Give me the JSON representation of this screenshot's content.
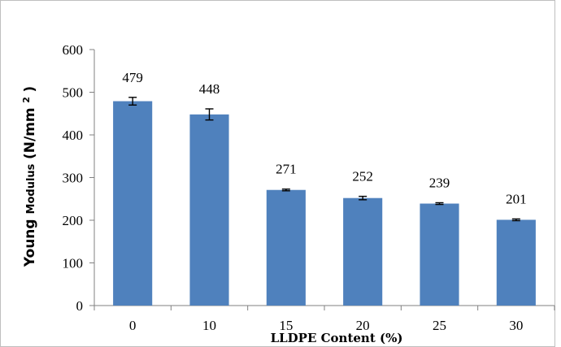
{
  "chart_data": {
    "type": "bar",
    "categories": [
      "0",
      "10",
      "15",
      "20",
      "25",
      "30"
    ],
    "values": [
      479,
      448,
      271,
      252,
      239,
      201
    ],
    "errors": [
      9,
      13,
      2,
      4,
      2,
      2
    ],
    "data_labels": [
      "479",
      "448",
      "271",
      "252",
      "239",
      "201"
    ],
    "title": "",
    "xlabel": "LLDPE Content (%)",
    "ylabel_parts": [
      "Young ",
      "Modulus",
      " (N/mm",
      "2",
      ")"
    ],
    "ylim": [
      0,
      600
    ],
    "yticks": [
      0,
      100,
      200,
      300,
      400,
      500,
      600
    ],
    "ytick_labels": [
      "0",
      "100",
      "200",
      "300",
      "400",
      "500",
      "600"
    ],
    "grid": false,
    "legend": "none",
    "bar_color": "#4f81bd"
  }
}
